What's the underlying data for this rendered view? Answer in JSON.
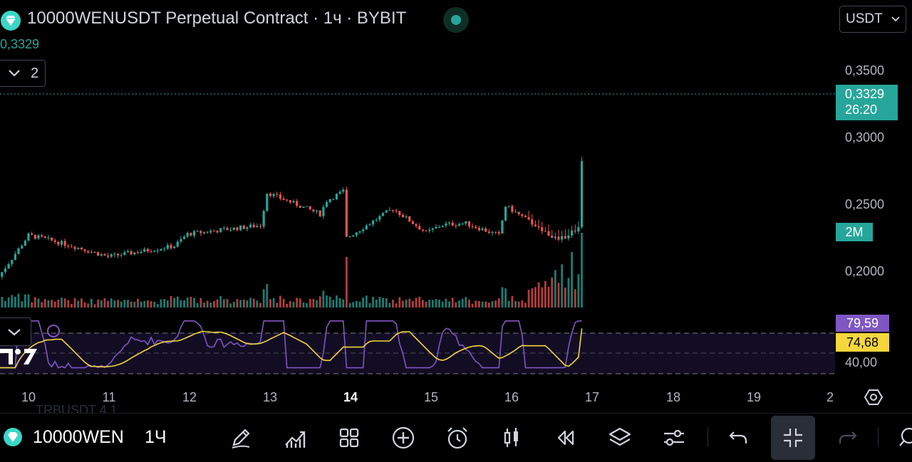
{
  "header": {
    "title": "10000WENUSDT Perpetual Contract · 1ч · BYBIT",
    "last_price": "0,3329",
    "indicators_count": "2",
    "currency": "USDT"
  },
  "price_axis": {
    "labels": [
      "0,3500",
      "0,3000",
      "0,2500",
      "0,2000"
    ],
    "current_price": "0,3329",
    "countdown": "26:20",
    "volume_tag": "2M"
  },
  "rsi": {
    "value": "79,59",
    "ma_value": "74,68",
    "level_label": "40,00"
  },
  "time_axis": {
    "labels": [
      "10",
      "11",
      "12",
      "13",
      "14",
      "15",
      "16",
      "17",
      "18",
      "19",
      "2"
    ],
    "bold_label": "14"
  },
  "bottom_bar": {
    "symbol": "10000WEN",
    "interval": "1Ч",
    "ghost_text": "TRBUSDT   4 1"
  },
  "colors": {
    "up": "#26a69a",
    "down": "#ef5350",
    "rsi": "#7e57c2",
    "rsi_ma": "#f5d63d"
  },
  "chart_data": {
    "type": "candlestick",
    "x": [
      "10",
      "11",
      "12",
      "13",
      "14",
      "15",
      "16",
      "17"
    ],
    "close": [
      0.227,
      0.211,
      0.228,
      0.259,
      0.225,
      0.229,
      0.249,
      0.3329
    ],
    "y_ticks": [
      0.35,
      0.3,
      0.25,
      0.2
    ],
    "ylim": [
      0.183,
      0.365
    ],
    "volume_tag": "2M",
    "rsi_value": 79.59,
    "rsi_ma": 74.68
  },
  "icons": [
    "pencil-icon",
    "indicators-icon",
    "layout-grid-icon",
    "add-icon",
    "alert-clock-icon",
    "candles-icon",
    "replay-icon",
    "layers-icon",
    "settings-sliders-icon",
    "undo-icon",
    "exit-fullscreen-icon",
    "redo-icon"
  ]
}
